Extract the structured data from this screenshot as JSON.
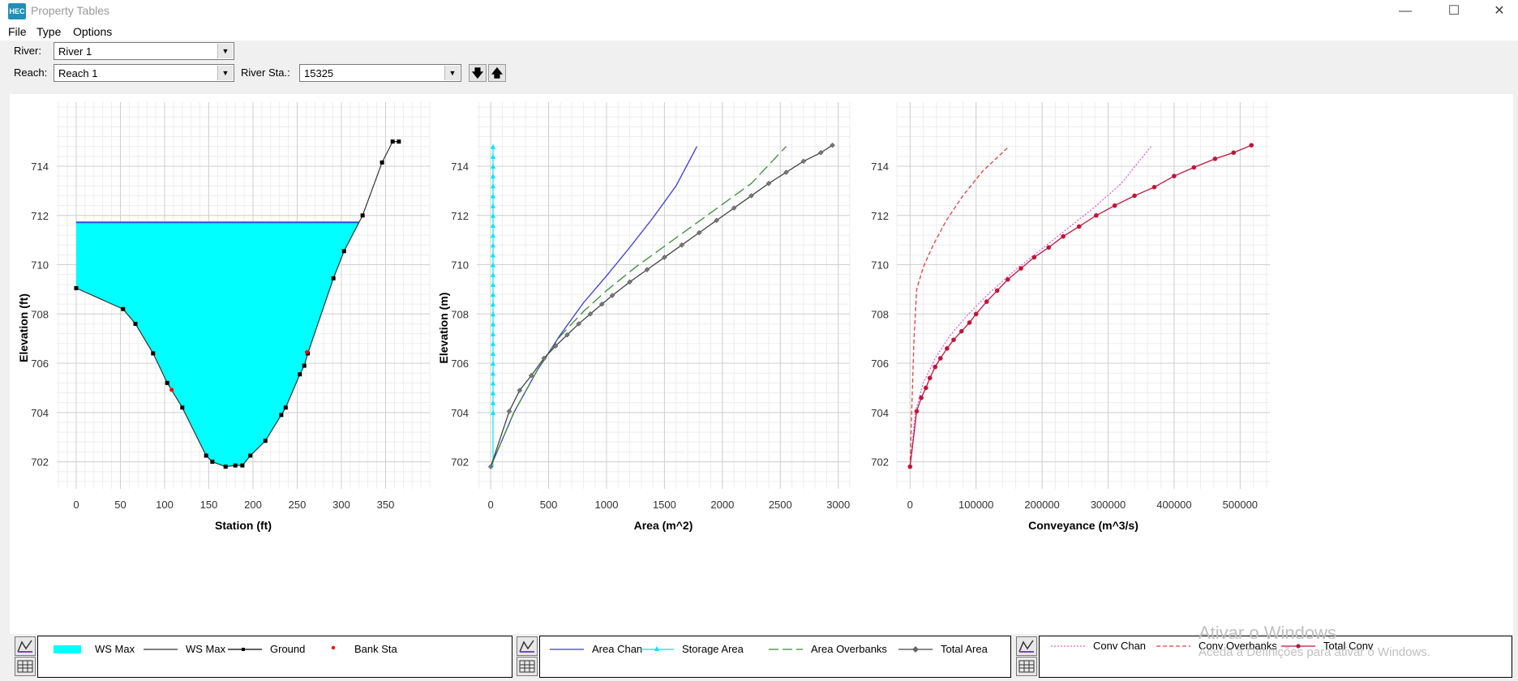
{
  "window": {
    "title": "Property Tables",
    "icon_text": "HEC",
    "minimize": "—",
    "maximize": "☐",
    "close": "✕"
  },
  "menu": [
    "File",
    "Type",
    "Options"
  ],
  "toolbar": {
    "river_label": "River:",
    "river_value": "River 1",
    "reach_label": "Reach:",
    "reach_value": "Reach 1",
    "station_label": "River Sta.:",
    "station_value": "15325",
    "down_label": "🡇",
    "up_label": "🡅"
  },
  "colors": {
    "ws_fill": "#00ffff",
    "ground": "#000000",
    "bank": "#ff0000",
    "area_chan": "#3a3ad8",
    "storage": "#00e5ff",
    "overbanks": "#3a8a3a",
    "total_area": "#444444",
    "conv_chan": "#e060e0",
    "conv_overbanks": "#e04040",
    "total_conv": "#c0153a"
  },
  "legends": {
    "xs": [
      {
        "label": "WS Max",
        "style": "fill"
      },
      {
        "label": "WS Max",
        "style": "line"
      },
      {
        "label": "Ground",
        "style": "ground"
      },
      {
        "label": "Bank Sta",
        "style": "bank"
      }
    ],
    "area": [
      {
        "label": "Area Chan",
        "style": "area_chan"
      },
      {
        "label": "Storage Area",
        "style": "storage"
      },
      {
        "label": "Area Overbanks",
        "style": "overbanks"
      },
      {
        "label": "Total Area",
        "style": "total_area"
      }
    ],
    "conv": [
      {
        "label": "Conv Chan",
        "style": "conv_chan"
      },
      {
        "label": "Conv Overbanks",
        "style": "conv_overbanks"
      },
      {
        "label": "Total Conv",
        "style": "total_conv"
      }
    ]
  },
  "watermark": {
    "line1": "Ativar o Windows",
    "line2": "Aceda a Definições para ativar o Windows."
  },
  "chart_data": [
    {
      "type": "area",
      "title": "",
      "xlabel": "Station (ft)",
      "ylabel": "Elevation (ft)",
      "xlim": [
        -22,
        400
      ],
      "ylim": [
        700.9,
        716.6
      ],
      "xticks": [
        0,
        50,
        100,
        150,
        200,
        250,
        300,
        350
      ],
      "yticks": [
        702,
        704,
        706,
        708,
        710,
        712,
        714
      ],
      "grid": true,
      "ground": [
        [
          0,
          709.05
        ],
        [
          53,
          708.2
        ],
        [
          67,
          707.6
        ],
        [
          87,
          706.4
        ],
        [
          103,
          705.2
        ],
        [
          120,
          704.2
        ],
        [
          147,
          702.25
        ],
        [
          154,
          702.0
        ],
        [
          169,
          701.8
        ],
        [
          180,
          701.85
        ],
        [
          188,
          701.85
        ],
        [
          197,
          702.25
        ],
        [
          214,
          702.85
        ],
        [
          232,
          703.9
        ],
        [
          237,
          704.2
        ],
        [
          253,
          705.55
        ],
        [
          258,
          705.9
        ],
        [
          262,
          706.4
        ],
        [
          291,
          709.45
        ],
        [
          303,
          710.55
        ],
        [
          324,
          712.0
        ],
        [
          346,
          714.15
        ],
        [
          358,
          715.0
        ],
        [
          365,
          715.0
        ]
      ],
      "bank_stations": [
        [
          108,
          704.92
        ],
        [
          261,
          706.45
        ]
      ],
      "ws_max": 711.72,
      "ws_x": [
        0,
        320
      ]
    },
    {
      "type": "line",
      "title": "",
      "xlabel": "Area (m^2)",
      "ylabel": "Elevation (m)",
      "xlim": [
        -120,
        3100
      ],
      "ylim": [
        700.9,
        716.6
      ],
      "xticks": [
        0,
        500,
        1000,
        1500,
        2000,
        2500,
        3000
      ],
      "yticks": [
        702,
        704,
        706,
        708,
        710,
        712,
        714
      ],
      "grid": true,
      "series": [
        {
          "name": "Area Chan",
          "points": [
            [
              0,
              701.8
            ],
            [
              200,
              704.0
            ],
            [
              400,
              705.7
            ],
            [
              600,
              707.15
            ],
            [
              800,
              708.45
            ],
            [
              1000,
              709.55
            ],
            [
              1200,
              710.7
            ],
            [
              1400,
              711.9
            ],
            [
              1600,
              713.2
            ],
            [
              1780,
              714.8
            ]
          ]
        },
        {
          "name": "Storage Area",
          "x": 20,
          "y_from": 701.8,
          "y_to": 714.85
        },
        {
          "name": "Area Overbanks",
          "points": [
            [
              0,
              701.8
            ],
            [
              200,
              704.0
            ],
            [
              400,
              705.7
            ],
            [
              600,
              707.1
            ],
            [
              800,
              708.1
            ],
            [
              1000,
              708.95
            ],
            [
              1250,
              709.9
            ],
            [
              1500,
              710.75
            ],
            [
              1750,
              711.6
            ],
            [
              2000,
              712.45
            ],
            [
              2250,
              713.3
            ],
            [
              2550,
              714.8
            ]
          ]
        },
        {
          "name": "Total Area",
          "points": [
            [
              0,
              701.8
            ],
            [
              160,
              704.05
            ],
            [
              250,
              704.9
            ],
            [
              350,
              705.5
            ],
            [
              460,
              706.2
            ],
            [
              560,
              706.7
            ],
            [
              660,
              707.15
            ],
            [
              760,
              707.6
            ],
            [
              860,
              708.0
            ],
            [
              960,
              708.4
            ],
            [
              1050,
              708.75
            ],
            [
              1200,
              709.3
            ],
            [
              1350,
              709.8
            ],
            [
              1500,
              710.3
            ],
            [
              1650,
              710.8
            ],
            [
              1800,
              711.3
            ],
            [
              1950,
              711.8
            ],
            [
              2100,
              712.3
            ],
            [
              2250,
              712.8
            ],
            [
              2400,
              713.3
            ],
            [
              2550,
              713.75
            ],
            [
              2700,
              714.2
            ],
            [
              2850,
              714.55
            ],
            [
              2950,
              714.85
            ]
          ]
        }
      ]
    },
    {
      "type": "line",
      "title": "",
      "xlabel": "Conveyance (m^3/s)",
      "ylabel": "",
      "xlim": [
        -20000,
        545000
      ],
      "ylim": [
        700.9,
        716.6
      ],
      "xticks": [
        0,
        100000,
        200000,
        300000,
        400000,
        500000
      ],
      "yticks": [
        702,
        704,
        706,
        708,
        710,
        712,
        714
      ],
      "grid": true,
      "series": [
        {
          "name": "Conv Chan",
          "points": [
            [
              0,
              701.8
            ],
            [
              8000,
              704.0
            ],
            [
              20000,
              705.2
            ],
            [
              38000,
              706.2
            ],
            [
              60000,
              707.1
            ],
            [
              85000,
              707.9
            ],
            [
              120000,
              708.85
            ],
            [
              160000,
              709.8
            ],
            [
              200000,
              710.65
            ],
            [
              240000,
              711.5
            ],
            [
              280000,
              712.35
            ],
            [
              320000,
              713.3
            ],
            [
              365000,
              714.8
            ]
          ]
        },
        {
          "name": "Conv Overbanks",
          "points": [
            [
              0,
              701.8
            ],
            [
              3000,
              704.5
            ],
            [
              6000,
              707.0
            ],
            [
              10000,
              709.0
            ],
            [
              20000,
              709.9
            ],
            [
              35000,
              710.8
            ],
            [
              55000,
              711.8
            ],
            [
              80000,
              712.8
            ],
            [
              110000,
              713.8
            ],
            [
              150000,
              714.8
            ]
          ]
        },
        {
          "name": "Total Conv",
          "points": [
            [
              0,
              701.8
            ],
            [
              10000,
              704.05
            ],
            [
              17000,
              704.6
            ],
            [
              24000,
              705.0
            ],
            [
              30000,
              705.4
            ],
            [
              38000,
              705.85
            ],
            [
              46000,
              706.2
            ],
            [
              56000,
              706.6
            ],
            [
              66000,
              706.95
            ],
            [
              78000,
              707.3
            ],
            [
              90000,
              707.65
            ],
            [
              100000,
              708.0
            ],
            [
              116000,
              708.5
            ],
            [
              132000,
              708.95
            ],
            [
              148000,
              709.4
            ],
            [
              168000,
              709.85
            ],
            [
              188000,
              710.3
            ],
            [
              210000,
              710.7
            ],
            [
              232000,
              711.15
            ],
            [
              256000,
              711.55
            ],
            [
              282000,
              712.0
            ],
            [
              310000,
              712.4
            ],
            [
              340000,
              712.8
            ],
            [
              370000,
              713.15
            ],
            [
              400000,
              713.6
            ],
            [
              430000,
              713.95
            ],
            [
              462000,
              714.3
            ],
            [
              490000,
              714.55
            ],
            [
              517000,
              714.85
            ]
          ]
        }
      ]
    }
  ]
}
